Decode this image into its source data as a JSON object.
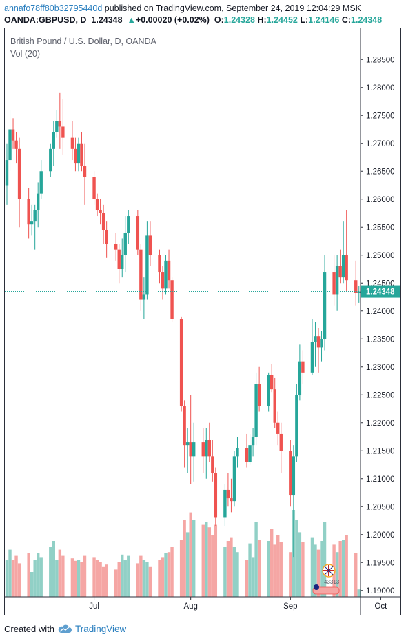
{
  "header": {
    "author": "annafo78ff80b32795440d",
    "published": " published on TradingView.com, September 24, 2019 12:04:29 MSK",
    "symbol": "OANDA:GBPUSD, D",
    "last": "1.24348",
    "change_arrow": "▲",
    "change": "+0.00020 (+0.02%)",
    "o_label": "O:",
    "o_value": "1.24328",
    "h_label": "H:",
    "h_value": "1.24452",
    "l_label": "L:",
    "l_value": "1.24146",
    "c_label": "C:",
    "c_value": "1.24348"
  },
  "legend": {
    "title": "British Pound / U.S. Dollar, D, OANDA",
    "volume": "Vol (20)"
  },
  "footer": {
    "created_with": "Created with",
    "brand": "TradingView",
    "logo_icon": "tradingview-cloud-icon"
  },
  "colors": {
    "up": "#26a69a",
    "down": "#ef5350",
    "vol_up": "#91d0c6",
    "vol_down": "#f5a6a4",
    "price_line": "#26a69a"
  },
  "chart_data": {
    "type": "candlestick",
    "price_axis": {
      "ticks": [
        "1.28500",
        "1.28000",
        "1.27500",
        "1.27000",
        "1.26500",
        "1.26000",
        "1.25500",
        "1.25000",
        "1.24500",
        "1.24000",
        "1.23500",
        "1.23000",
        "1.22500",
        "1.22000",
        "1.21500",
        "1.21000",
        "1.20500",
        "1.20000",
        "1.19500",
        "1.19000"
      ],
      "ylim": [
        1.1875,
        1.2875
      ],
      "last_price_label": "1.24348",
      "last_price": 1.24348
    },
    "time_axis": {
      "ticks": [
        {
          "label": "Jul",
          "date": "2019-07-01"
        },
        {
          "label": "Aug",
          "date": "2019-08-01"
        },
        {
          "label": "Sep",
          "date": "2019-09-02"
        },
        {
          "label": "Oct",
          "date": "2019-10-01"
        }
      ]
    },
    "candles": [
      {
        "date": "2019-06-03",
        "open": 1.2625,
        "high": 1.27,
        "low": 1.259,
        "close": 1.267,
        "vol_rel": 0.3
      },
      {
        "date": "2019-06-04",
        "open": 1.267,
        "high": 1.276,
        "low": 1.265,
        "close": 1.2725,
        "vol_rel": 0.38
      },
      {
        "date": "2019-06-05",
        "open": 1.2725,
        "high": 1.2745,
        "low": 1.269,
        "close": 1.2705,
        "vol_rel": 0.3
      },
      {
        "date": "2019-06-06",
        "open": 1.2705,
        "high": 1.272,
        "low": 1.2665,
        "close": 1.269,
        "vol_rel": 0.33
      },
      {
        "date": "2019-06-07",
        "open": 1.269,
        "high": 1.271,
        "low": 1.255,
        "close": 1.26,
        "vol_rel": 0.27
      },
      {
        "date": "2019-06-10",
        "open": 1.26,
        "high": 1.262,
        "low": 1.253,
        "close": 1.2555,
        "vol_rel": 0.35
      },
      {
        "date": "2019-06-11",
        "open": 1.2555,
        "high": 1.259,
        "low": 1.2535,
        "close": 1.256,
        "vol_rel": 0.2
      },
      {
        "date": "2019-06-12",
        "open": 1.256,
        "high": 1.259,
        "low": 1.251,
        "close": 1.258,
        "vol_rel": 0.3
      },
      {
        "date": "2019-06-13",
        "open": 1.258,
        "high": 1.263,
        "low": 1.255,
        "close": 1.261,
        "vol_rel": 0.35
      },
      {
        "date": "2019-06-14",
        "open": 1.261,
        "high": 1.267,
        "low": 1.26,
        "close": 1.265,
        "vol_rel": 0.32
      },
      {
        "date": "2019-06-17",
        "open": 1.265,
        "high": 1.27,
        "low": 1.264,
        "close": 1.269,
        "vol_rel": 0.4
      },
      {
        "date": "2019-06-18",
        "open": 1.269,
        "high": 1.274,
        "low": 1.266,
        "close": 1.272,
        "vol_rel": 0.45
      },
      {
        "date": "2019-06-19",
        "open": 1.272,
        "high": 1.276,
        "low": 1.271,
        "close": 1.274,
        "vol_rel": 0.3
      },
      {
        "date": "2019-06-20",
        "open": 1.274,
        "high": 1.279,
        "low": 1.269,
        "close": 1.273,
        "vol_rel": 0.38
      },
      {
        "date": "2019-06-21",
        "open": 1.273,
        "high": 1.278,
        "low": 1.268,
        "close": 1.271,
        "vol_rel": 0.33
      },
      {
        "date": "2019-06-24",
        "open": 1.271,
        "high": 1.274,
        "low": 1.267,
        "close": 1.269,
        "vol_rel": 0.31
      },
      {
        "date": "2019-06-25",
        "open": 1.269,
        "high": 1.271,
        "low": 1.265,
        "close": 1.2665,
        "vol_rel": 0.29
      },
      {
        "date": "2019-06-26",
        "open": 1.2665,
        "high": 1.271,
        "low": 1.265,
        "close": 1.27,
        "vol_rel": 0.3
      },
      {
        "date": "2019-06-27",
        "open": 1.27,
        "high": 1.272,
        "low": 1.265,
        "close": 1.266,
        "vol_rel": 0.28
      },
      {
        "date": "2019-06-28",
        "open": 1.266,
        "high": 1.27,
        "low": 1.259,
        "close": 1.264,
        "vol_rel": 0.33
      },
      {
        "date": "2019-07-01",
        "open": 1.264,
        "high": 1.265,
        "low": 1.259,
        "close": 1.26,
        "vol_rel": 0.32
      },
      {
        "date": "2019-07-02",
        "open": 1.26,
        "high": 1.261,
        "low": 1.257,
        "close": 1.258,
        "vol_rel": 0.3
      },
      {
        "date": "2019-07-03",
        "open": 1.258,
        "high": 1.26,
        "low": 1.2555,
        "close": 1.2575,
        "vol_rel": 0.28
      },
      {
        "date": "2019-07-04",
        "open": 1.2575,
        "high": 1.259,
        "low": 1.252,
        "close": 1.2545,
        "vol_rel": 0.24
      },
      {
        "date": "2019-07-05",
        "open": 1.2545,
        "high": 1.256,
        "low": 1.2495,
        "close": 1.252,
        "vol_rel": 0.26
      },
      {
        "date": "2019-07-08",
        "open": 1.252,
        "high": 1.254,
        "low": 1.249,
        "close": 1.251,
        "vol_rel": 0.22
      },
      {
        "date": "2019-07-09",
        "open": 1.251,
        "high": 1.252,
        "low": 1.245,
        "close": 1.2475,
        "vol_rel": 0.28
      },
      {
        "date": "2019-07-10",
        "open": 1.2475,
        "high": 1.253,
        "low": 1.246,
        "close": 1.25,
        "vol_rel": 0.34
      },
      {
        "date": "2019-07-11",
        "open": 1.25,
        "high": 1.257,
        "low": 1.247,
        "close": 1.254,
        "vol_rel": 0.3
      },
      {
        "date": "2019-07-12",
        "open": 1.254,
        "high": 1.258,
        "low": 1.252,
        "close": 1.257,
        "vol_rel": 0.33
      },
      {
        "date": "2019-07-15",
        "open": 1.257,
        "high": 1.258,
        "low": 1.25,
        "close": 1.251,
        "vol_rel": 0.27
      },
      {
        "date": "2019-07-16",
        "open": 1.251,
        "high": 1.252,
        "low": 1.24,
        "close": 1.242,
        "vol_rel": 0.33
      },
      {
        "date": "2019-07-17",
        "open": 1.242,
        "high": 1.246,
        "low": 1.2385,
        "close": 1.243,
        "vol_rel": 0.3
      },
      {
        "date": "2019-07-18",
        "open": 1.243,
        "high": 1.256,
        "low": 1.242,
        "close": 1.2535,
        "vol_rel": 0.28
      },
      {
        "date": "2019-07-19",
        "open": 1.2535,
        "high": 1.256,
        "low": 1.248,
        "close": 1.25,
        "vol_rel": 0.24
      },
      {
        "date": "2019-07-22",
        "open": 1.25,
        "high": 1.251,
        "low": 1.245,
        "close": 1.247,
        "vol_rel": 0.3
      },
      {
        "date": "2019-07-23",
        "open": 1.247,
        "high": 1.248,
        "low": 1.242,
        "close": 1.244,
        "vol_rel": 0.32
      },
      {
        "date": "2019-07-24",
        "open": 1.244,
        "high": 1.25,
        "low": 1.243,
        "close": 1.249,
        "vol_rel": 0.35
      },
      {
        "date": "2019-07-25",
        "open": 1.249,
        "high": 1.251,
        "low": 1.244,
        "close": 1.2455,
        "vol_rel": 0.36
      },
      {
        "date": "2019-07-26",
        "open": 1.2455,
        "high": 1.246,
        "low": 1.238,
        "close": 1.2385,
        "vol_rel": 0.4
      },
      {
        "date": "2019-07-29",
        "open": 1.2385,
        "high": 1.239,
        "low": 1.222,
        "close": 1.223,
        "vol_rel": 0.46
      },
      {
        "date": "2019-07-30",
        "open": 1.223,
        "high": 1.224,
        "low": 1.212,
        "close": 1.216,
        "vol_rel": 0.62
      },
      {
        "date": "2019-07-31",
        "open": 1.216,
        "high": 1.219,
        "low": 1.211,
        "close": 1.2165,
        "vol_rel": 0.52
      },
      {
        "date": "2019-08-01",
        "open": 1.2165,
        "high": 1.225,
        "low": 1.209,
        "close": 1.214,
        "vol_rel": 0.68
      },
      {
        "date": "2019-08-02",
        "open": 1.214,
        "high": 1.22,
        "low": 1.2095,
        "close": 1.2165,
        "vol_rel": 0.62
      },
      {
        "date": "2019-08-05",
        "open": 1.2165,
        "high": 1.219,
        "low": 1.211,
        "close": 1.214,
        "vol_rel": 0.58
      },
      {
        "date": "2019-08-06",
        "open": 1.214,
        "high": 1.219,
        "low": 1.21,
        "close": 1.217,
        "vol_rel": 0.6
      },
      {
        "date": "2019-08-07",
        "open": 1.217,
        "high": 1.22,
        "low": 1.213,
        "close": 1.214,
        "vol_rel": 0.56
      },
      {
        "date": "2019-08-08",
        "open": 1.214,
        "high": 1.217,
        "low": 1.2095,
        "close": 1.211,
        "vol_rel": 0.5
      },
      {
        "date": "2019-08-09",
        "open": 1.211,
        "high": 1.212,
        "low": 1.2015,
        "close": 1.203,
        "vol_rel": 0.58
      },
      {
        "date": "2019-08-12",
        "open": 1.203,
        "high": 1.209,
        "low": 1.2015,
        "close": 1.208,
        "vol_rel": 0.4
      },
      {
        "date": "2019-08-13",
        "open": 1.208,
        "high": 1.211,
        "low": 1.205,
        "close": 1.2065,
        "vol_rel": 0.45
      },
      {
        "date": "2019-08-14",
        "open": 1.2065,
        "high": 1.21,
        "low": 1.204,
        "close": 1.206,
        "vol_rel": 0.48
      },
      {
        "date": "2019-08-15",
        "open": 1.206,
        "high": 1.215,
        "low": 1.205,
        "close": 1.214,
        "vol_rel": 0.4
      },
      {
        "date": "2019-08-16",
        "open": 1.214,
        "high": 1.2175,
        "low": 1.212,
        "close": 1.2155,
        "vol_rel": 0.36
      },
      {
        "date": "2019-08-19",
        "open": 1.2155,
        "high": 1.218,
        "low": 1.212,
        "close": 1.213,
        "vol_rel": 0.3
      },
      {
        "date": "2019-08-20",
        "open": 1.213,
        "high": 1.218,
        "low": 1.2125,
        "close": 1.216,
        "vol_rel": 0.43
      },
      {
        "date": "2019-08-21",
        "open": 1.216,
        "high": 1.219,
        "low": 1.214,
        "close": 1.2175,
        "vol_rel": 0.32
      },
      {
        "date": "2019-08-22",
        "open": 1.2175,
        "high": 1.229,
        "low": 1.216,
        "close": 1.227,
        "vol_rel": 0.6
      },
      {
        "date": "2019-08-23",
        "open": 1.227,
        "high": 1.23,
        "low": 1.222,
        "close": 1.223,
        "vol_rel": 0.46
      },
      {
        "date": "2019-08-26",
        "open": 1.223,
        "high": 1.229,
        "low": 1.222,
        "close": 1.2285,
        "vol_rel": 0.45
      },
      {
        "date": "2019-08-27",
        "open": 1.2285,
        "high": 1.2305,
        "low": 1.2255,
        "close": 1.226,
        "vol_rel": 0.55
      },
      {
        "date": "2019-08-28",
        "open": 1.226,
        "high": 1.228,
        "low": 1.219,
        "close": 1.22,
        "vol_rel": 0.42
      },
      {
        "date": "2019-08-29",
        "open": 1.22,
        "high": 1.222,
        "low": 1.216,
        "close": 1.218,
        "vol_rel": 0.5
      },
      {
        "date": "2019-08-30",
        "open": 1.218,
        "high": 1.22,
        "low": 1.211,
        "close": 1.215,
        "vol_rel": 0.44
      },
      {
        "date": "2019-09-02",
        "open": 1.215,
        "high": 1.217,
        "low": 1.205,
        "close": 1.207,
        "vol_rel": 0.36
      },
      {
        "date": "2019-09-03",
        "open": 1.207,
        "high": 1.216,
        "low": 1.196,
        "close": 1.214,
        "vol_rel": 0.7
      },
      {
        "date": "2019-09-04",
        "open": 1.214,
        "high": 1.227,
        "low": 1.213,
        "close": 1.225,
        "vol_rel": 0.62
      },
      {
        "date": "2019-09-05",
        "open": 1.225,
        "high": 1.234,
        "low": 1.224,
        "close": 1.231,
        "vol_rel": 0.52
      },
      {
        "date": "2019-09-06",
        "open": 1.231,
        "high": 1.233,
        "low": 1.227,
        "close": 1.229,
        "vol_rel": 0.44
      },
      {
        "date": "2019-09-09",
        "open": 1.229,
        "high": 1.2385,
        "low": 1.2285,
        "close": 1.2345,
        "vol_rel": 0.48
      },
      {
        "date": "2019-09-10",
        "open": 1.2345,
        "high": 1.238,
        "low": 1.23,
        "close": 1.2355,
        "vol_rel": 0.42
      },
      {
        "date": "2019-09-11",
        "open": 1.2355,
        "high": 1.237,
        "low": 1.229,
        "close": 1.2335,
        "vol_rel": 0.38
      },
      {
        "date": "2019-09-12",
        "open": 1.2335,
        "high": 1.2365,
        "low": 1.231,
        "close": 1.235,
        "vol_rel": 0.45
      },
      {
        "date": "2019-09-13",
        "open": 1.235,
        "high": 1.25,
        "low": 1.233,
        "close": 1.247,
        "vol_rel": 0.6
      },
      {
        "date": "2019-09-16",
        "open": 1.247,
        "high": 1.25,
        "low": 1.241,
        "close": 1.243,
        "vol_rel": 0.42
      },
      {
        "date": "2019-09-17",
        "open": 1.243,
        "high": 1.25,
        "low": 1.24,
        "close": 1.248,
        "vol_rel": 0.36
      },
      {
        "date": "2019-09-18",
        "open": 1.248,
        "high": 1.251,
        "low": 1.245,
        "close": 1.246,
        "vol_rel": 0.45
      },
      {
        "date": "2019-09-19",
        "open": 1.246,
        "high": 1.256,
        "low": 1.245,
        "close": 1.25,
        "vol_rel": 0.46
      },
      {
        "date": "2019-09-20",
        "open": 1.25,
        "high": 1.258,
        "low": 1.2435,
        "close": 1.2455,
        "vol_rel": 0.5
      },
      {
        "date": "2019-09-23",
        "open": 1.2455,
        "high": 1.249,
        "low": 1.241,
        "close": 1.2433,
        "vol_rel": 0.35
      },
      {
        "date": "2019-09-24",
        "open": 1.24328,
        "high": 1.24452,
        "low": 1.24146,
        "close": 1.24348,
        "vol_rel": 0.06
      }
    ]
  }
}
